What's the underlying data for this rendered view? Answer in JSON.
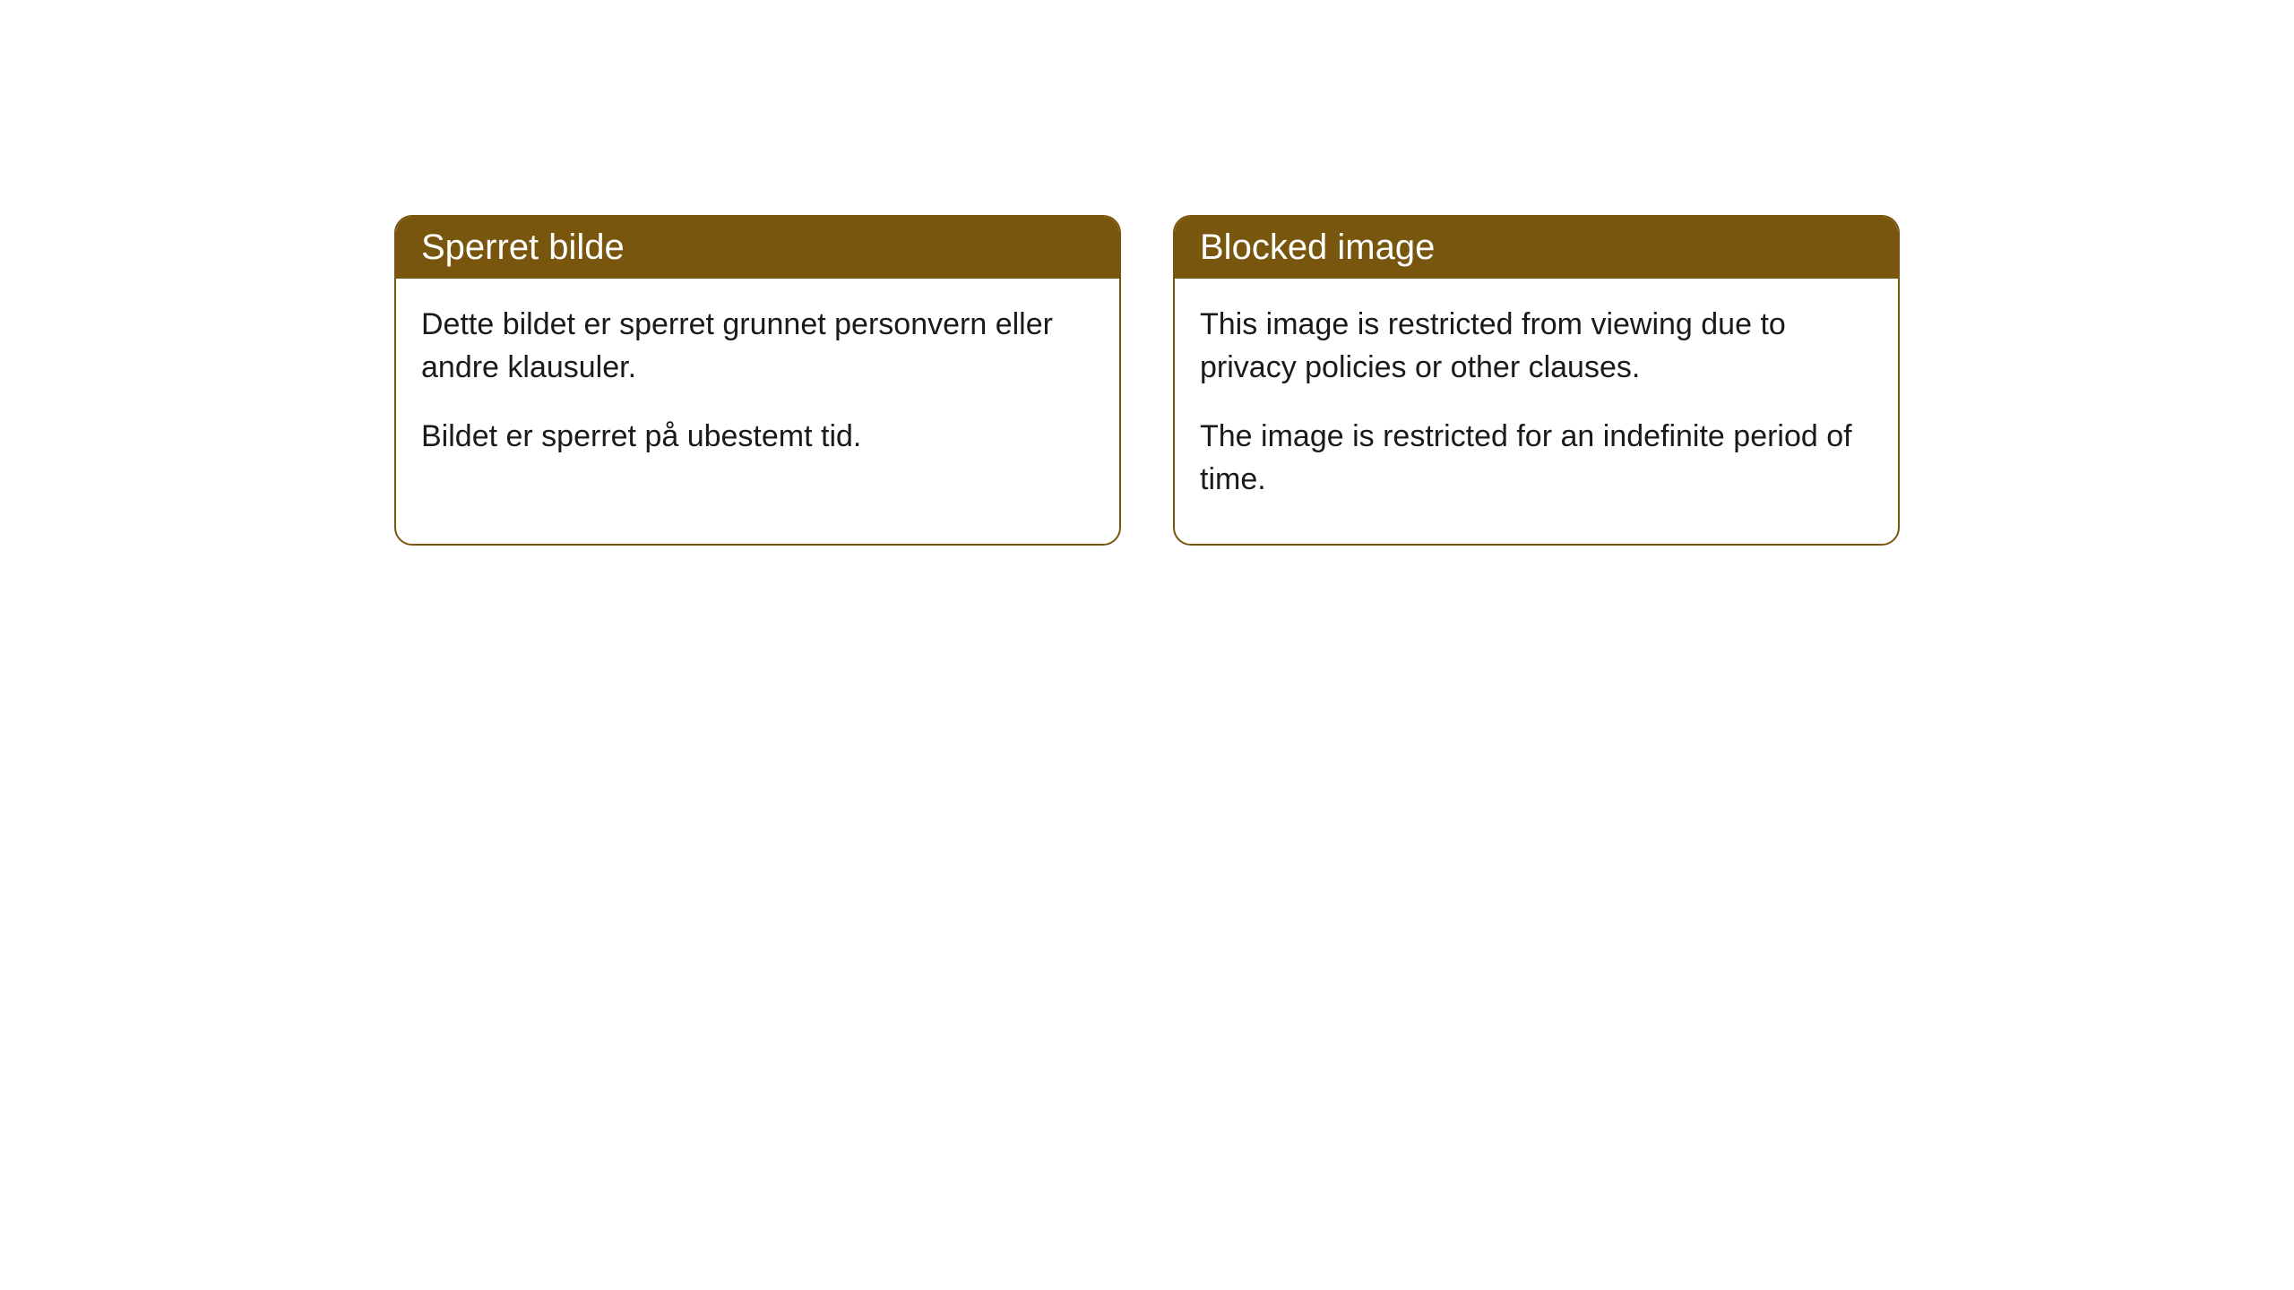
{
  "cards": [
    {
      "title": "Sperret bilde",
      "paragraph1": "Dette bildet er sperret grunnet personvern eller andre klausuler.",
      "paragraph2": "Bildet er sperret på ubestemt tid."
    },
    {
      "title": "Blocked image",
      "paragraph1": "This image is restricted from viewing due to privacy policies or other clauses.",
      "paragraph2": "The image is restricted for an indefinite period of time."
    }
  ],
  "styling": {
    "header_background_color": "#78560d",
    "header_text_color": "#ffffff",
    "card_border_color": "#78560d",
    "card_background_color": "#ffffff",
    "body_text_color": "#1a1a1a",
    "page_background_color": "#ffffff",
    "header_font_size": 40,
    "body_font_size": 34,
    "border_radius": 20,
    "card_gap": 58
  }
}
